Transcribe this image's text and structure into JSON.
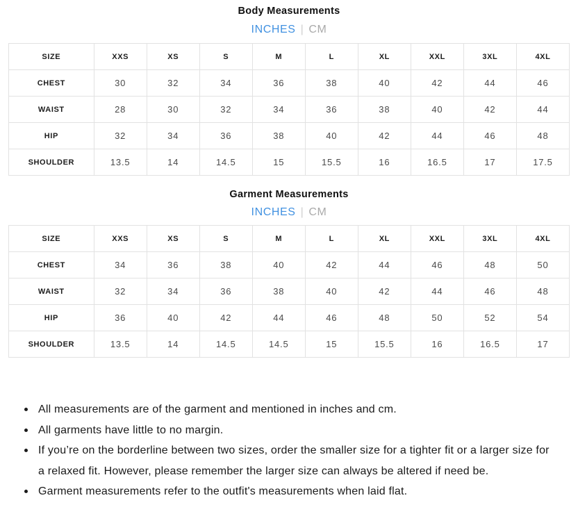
{
  "colors": {
    "accent_blue": "#4191e1",
    "muted_gray": "#aaaaaa",
    "table_border": "#e2e2e2"
  },
  "body": {
    "title": "Body Measurements",
    "units": {
      "inches": "INCHES",
      "separator": "|",
      "cm": "CM"
    },
    "columns": [
      "SIZE",
      "XXS",
      "XS",
      "S",
      "M",
      "L",
      "XL",
      "XXL",
      "3XL",
      "4XL"
    ],
    "rows": [
      {
        "label": "CHEST",
        "values": [
          "30",
          "32",
          "34",
          "36",
          "38",
          "40",
          "42",
          "44",
          "46"
        ]
      },
      {
        "label": "WAIST",
        "values": [
          "28",
          "30",
          "32",
          "34",
          "36",
          "38",
          "40",
          "42",
          "44"
        ]
      },
      {
        "label": "HIP",
        "values": [
          "32",
          "34",
          "36",
          "38",
          "40",
          "42",
          "44",
          "46",
          "48"
        ]
      },
      {
        "label": "SHOULDER",
        "values": [
          "13.5",
          "14",
          "14.5",
          "15",
          "15.5",
          "16",
          "16.5",
          "17",
          "17.5"
        ]
      }
    ]
  },
  "garment": {
    "title": "Garment Measurements",
    "units": {
      "inches": "INCHES",
      "separator": "|",
      "cm": "CM"
    },
    "columns": [
      "SIZE",
      "XXS",
      "XS",
      "S",
      "M",
      "L",
      "XL",
      "XXL",
      "3XL",
      "4XL"
    ],
    "rows": [
      {
        "label": "CHEST",
        "values": [
          "34",
          "36",
          "38",
          "40",
          "42",
          "44",
          "46",
          "48",
          "50"
        ]
      },
      {
        "label": "WAIST",
        "values": [
          "32",
          "34",
          "36",
          "38",
          "40",
          "42",
          "44",
          "46",
          "48"
        ]
      },
      {
        "label": "HIP",
        "values": [
          "36",
          "40",
          "42",
          "44",
          "46",
          "48",
          "50",
          "52",
          "54"
        ]
      },
      {
        "label": "SHOULDER",
        "values": [
          "13.5",
          "14",
          "14.5",
          "14.5",
          "15",
          "15.5",
          "16",
          "16.5",
          "17"
        ]
      }
    ]
  },
  "notes": [
    "All measurements are of the garment and mentioned in inches and cm.",
    "All garments have little to no margin.",
    "If you’re on the borderline between two sizes, order the smaller size for a tighter fit or a larger size for a relaxed fit. However, please remember the larger size can always be altered if need be.",
    "Garment measurements refer to the outfit's measurements when laid flat."
  ]
}
